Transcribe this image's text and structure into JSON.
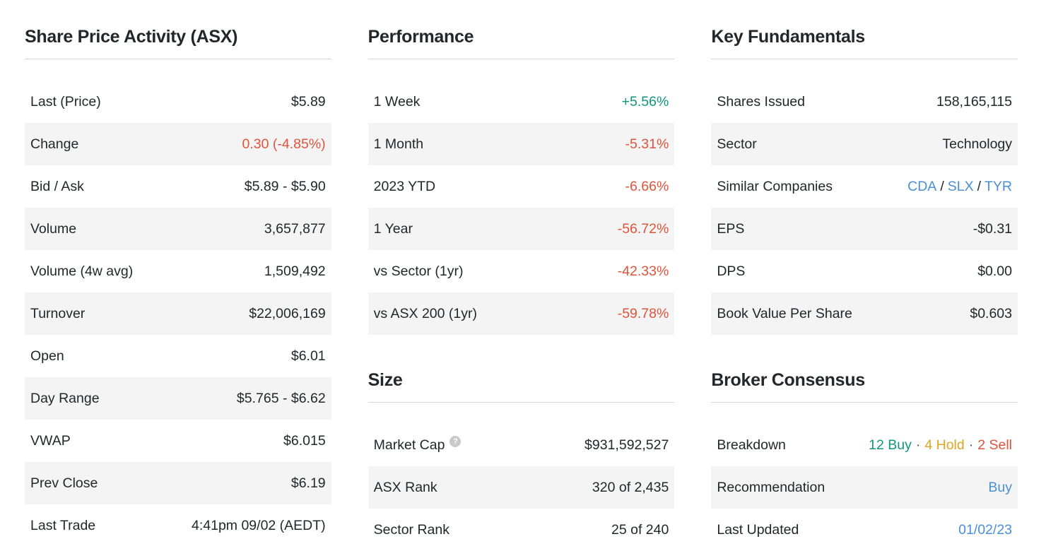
{
  "colors": {
    "negative_red": "#e0543c",
    "positive_green": "#11967e",
    "link_blue": "#4a8fd6",
    "hold_gold": "#e0a526",
    "row_alt_bg": "#f4f4f4"
  },
  "icons": {
    "help": "?"
  },
  "share_price": {
    "title": "Share Price Activity (ASX)",
    "rows": [
      {
        "label": "Last (Price)",
        "value": "$5.89"
      },
      {
        "label": "Change",
        "value": "0.30 (-4.85%)"
      },
      {
        "label": "Bid / Ask",
        "value": "$5.89 - $5.90"
      },
      {
        "label": "Volume",
        "value": "3,657,877"
      },
      {
        "label": "Volume (4w avg)",
        "value": "1,509,492"
      },
      {
        "label": "Turnover",
        "value": "$22,006,169"
      },
      {
        "label": "Open",
        "value": "$6.01"
      },
      {
        "label": "Day Range",
        "value": "$5.765 - $6.62"
      },
      {
        "label": "VWAP",
        "value": "$6.015"
      },
      {
        "label": "Prev Close",
        "value": "$6.19"
      },
      {
        "label": "Last Trade",
        "value": "4:41pm 09/02 (AEDT)"
      }
    ]
  },
  "performance": {
    "title": "Performance",
    "rows": [
      {
        "label": "1 Week",
        "value": "+5.56%"
      },
      {
        "label": "1 Month",
        "value": "-5.31%"
      },
      {
        "label": "2023 YTD",
        "value": "-6.66%"
      },
      {
        "label": "1 Year",
        "value": "-56.72%"
      },
      {
        "label": "vs Sector (1yr)",
        "value": "-42.33%"
      },
      {
        "label": "vs ASX 200 (1yr)",
        "value": "-59.78%"
      }
    ]
  },
  "size": {
    "title": "Size",
    "rows": [
      {
        "label": "Market Cap",
        "value": "$931,592,527"
      },
      {
        "label": "ASX Rank",
        "value": "320 of 2,435"
      },
      {
        "label": "Sector Rank",
        "value": "25 of 240"
      }
    ]
  },
  "fundamentals": {
    "title": "Key Fundamentals",
    "separator": "/",
    "similar_companies": [
      "CDA",
      "SLX",
      "TYR"
    ],
    "rows": [
      {
        "label": "Shares Issued",
        "value": "158,165,115"
      },
      {
        "label": "Sector",
        "value": "Technology"
      },
      {
        "label": "Similar Companies",
        "value": ""
      },
      {
        "label": "EPS",
        "value": "-$0.31"
      },
      {
        "label": "DPS",
        "value": "$0.00"
      },
      {
        "label": "Book Value Per Share",
        "value": "$0.603"
      }
    ]
  },
  "broker": {
    "title": "Broker Consensus",
    "breakdown": {
      "buy": "12 Buy",
      "hold": "4 Hold",
      "sell": "2 Sell",
      "sep": "·"
    },
    "rows": [
      {
        "label": "Breakdown",
        "value": ""
      },
      {
        "label": "Recommendation",
        "value": "Buy"
      },
      {
        "label": "Last Updated",
        "value": "01/02/23"
      }
    ]
  }
}
